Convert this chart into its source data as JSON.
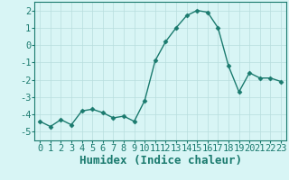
{
  "title": "",
  "xlabel": "Humidex (Indice chaleur)",
  "ylabel": "",
  "x": [
    0,
    1,
    2,
    3,
    4,
    5,
    6,
    7,
    8,
    9,
    10,
    11,
    12,
    13,
    14,
    15,
    16,
    17,
    18,
    19,
    20,
    21,
    22,
    23
  ],
  "y": [
    -4.4,
    -4.7,
    -4.3,
    -4.6,
    -3.8,
    -3.7,
    -3.9,
    -4.2,
    -4.1,
    -4.4,
    -3.2,
    -0.9,
    0.2,
    1.0,
    1.7,
    2.0,
    1.9,
    1.0,
    -1.2,
    -2.7,
    -1.6,
    -1.9,
    -1.9,
    -2.1
  ],
  "line_color": "#1a7a6e",
  "marker": "D",
  "marker_size": 2.5,
  "background_color": "#d8f5f5",
  "grid_color": "#b8dede",
  "ylim": [
    -5.5,
    2.5
  ],
  "xlim": [
    -0.5,
    23.5
  ],
  "yticks": [
    -5,
    -4,
    -3,
    -2,
    -1,
    0,
    1,
    2
  ],
  "xticks": [
    0,
    1,
    2,
    3,
    4,
    5,
    6,
    7,
    8,
    9,
    10,
    11,
    12,
    13,
    14,
    15,
    16,
    17,
    18,
    19,
    20,
    21,
    22,
    23
  ],
  "tick_fontsize": 7.5,
  "xlabel_fontsize": 9,
  "linewidth": 1.0
}
